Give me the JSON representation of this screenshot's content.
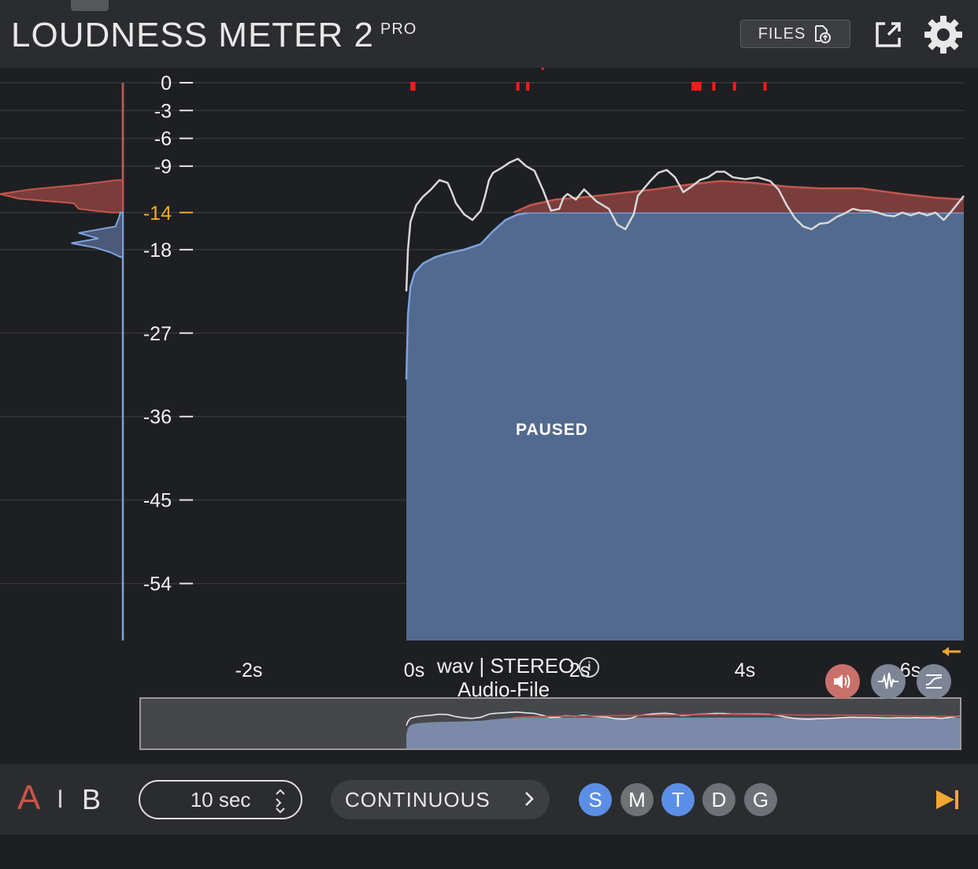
{
  "header": {
    "title": "LOUDNESS METER 2",
    "badge": "PRO",
    "files_label": "FILES",
    "icons": [
      "upload-file-icon",
      "external-window-icon",
      "gear-icon"
    ]
  },
  "status": {
    "paused": "PAUSED",
    "file_line1": "wav | STEREO",
    "file_line2": "Audio-File",
    "info_icon_glyph": "i"
  },
  "colors": {
    "momentary_line": "#d8d8d8",
    "short_term_fill": "#c1574e",
    "integrated_fill": "#526a8f",
    "integrated_line": "#7ea2df",
    "target": "#f0a830",
    "true_peak": "#ff1a1a",
    "accent_blue": "#5b8fe6"
  },
  "chart_data": {
    "type": "area",
    "y_ticks": [
      "0",
      "-3",
      "-6",
      "-9",
      "-14",
      "-18",
      "-27",
      "-36",
      "-45",
      "-54"
    ],
    "target_tick": "-14",
    "x_ticks": [
      "-2s",
      "0s",
      "2s",
      "4s",
      "6s"
    ],
    "xlim": [
      -3.9,
      6.6
    ],
    "ylim": [
      -60,
      0
    ],
    "target_lufs": -14,
    "grid": true,
    "series": [
      {
        "key": "integrated",
        "x": [
          0,
          0.02,
          0.05,
          0.1,
          0.2,
          0.35,
          0.5,
          0.7,
          0.9,
          1.05,
          1.2,
          1.35,
          1.5,
          7
        ],
        "y": [
          -32,
          -25,
          -22,
          -20.5,
          -19.5,
          -18.8,
          -18.4,
          -18,
          -17.4,
          -16,
          -14.8,
          -14.2,
          -14,
          -14
        ]
      },
      {
        "key": "short_term",
        "x": [
          1.3,
          1.5,
          1.8,
          2.2,
          2.6,
          3.0,
          3.4,
          3.8,
          4.2,
          4.6,
          5.0,
          5.5,
          6.0,
          6.4,
          6.75
        ],
        "y": [
          -14,
          -13.2,
          -12.6,
          -12.3,
          -11.9,
          -11.5,
          -11.0,
          -10.6,
          -10.8,
          -11.2,
          -11.4,
          -11.4,
          -12.0,
          -12.4,
          -12.6
        ]
      },
      {
        "key": "momentary",
        "x": [
          0,
          0.02,
          0.05,
          0.12,
          0.2,
          0.3,
          0.4,
          0.5,
          0.55,
          0.6,
          0.7,
          0.8,
          0.9,
          0.95,
          1.0,
          1.05,
          1.15,
          1.25,
          1.35,
          1.45,
          1.55,
          1.65,
          1.75,
          1.85,
          1.9,
          1.95,
          2.05,
          2.15,
          2.3,
          2.45,
          2.55,
          2.65,
          2.75,
          2.8,
          2.95,
          3.05,
          3.15,
          3.25,
          3.35,
          3.45,
          3.55,
          3.65,
          3.75,
          3.85,
          3.95,
          4.1,
          4.25,
          4.4,
          4.5,
          4.6,
          4.7,
          4.8,
          4.9,
          5.0,
          5.1,
          5.2,
          5.3,
          5.4,
          5.5,
          5.6,
          5.7,
          5.8,
          5.9,
          6.0,
          6.1,
          6.2,
          6.3,
          6.4,
          6.5,
          6.6,
          6.75
        ],
        "y": [
          -22.5,
          -18,
          -15,
          -13.2,
          -12.3,
          -11.5,
          -10.5,
          -10.8,
          -11.8,
          -13.0,
          -14.2,
          -14.8,
          -13.8,
          -12.3,
          -10.5,
          -9.7,
          -9.2,
          -8.6,
          -8.2,
          -9.0,
          -9.5,
          -11.5,
          -13.8,
          -13.6,
          -12.4,
          -12.0,
          -12.6,
          -11.5,
          -12.8,
          -13.6,
          -15.3,
          -15.8,
          -14.2,
          -12.2,
          -10.6,
          -9.7,
          -9.4,
          -10.2,
          -11.8,
          -11.2,
          -10.5,
          -10.2,
          -9.6,
          -9.6,
          -10.2,
          -10.4,
          -10.2,
          -10.6,
          -11.5,
          -13.2,
          -14.6,
          -15.5,
          -15.8,
          -15.2,
          -15.1,
          -14.5,
          -14.1,
          -13.6,
          -13.8,
          -13.8,
          -14.0,
          -14.3,
          -14.4,
          -14.0,
          -14.3,
          -14.0,
          -14.3,
          -14.0,
          -14.8,
          -13.8,
          -12.2
        ]
      }
    ],
    "true_peaks": [
      {
        "x": 0.05,
        "w": 0.06
      },
      {
        "x": 1.33,
        "w": 0.02
      },
      {
        "x": 1.45,
        "w": 0.02
      },
      {
        "x": 3.45,
        "w": 0.12
      },
      {
        "x": 3.7,
        "w": 0.03
      },
      {
        "x": 3.95,
        "w": 0.02
      },
      {
        "x": 4.32,
        "w": 0.02
      }
    ],
    "playhead_x": 1.65
  },
  "histogram": {
    "short_term": [
      {
        "lufs": -10.5,
        "v": 0.05
      },
      {
        "lufs": -11.0,
        "v": 0.35
      },
      {
        "lufs": -11.5,
        "v": 0.75
      },
      {
        "lufs": -12.0,
        "v": 1.0
      },
      {
        "lufs": -12.5,
        "v": 0.85
      },
      {
        "lufs": -13.0,
        "v": 0.4
      },
      {
        "lufs": -13.6,
        "v": 0.36
      },
      {
        "lufs": -14.0,
        "v": 0.1
      }
    ],
    "integrated": [
      {
        "lufs": -14.0,
        "v": 0.02
      },
      {
        "lufs": -14.5,
        "v": 0.03
      },
      {
        "lufs": -15.5,
        "v": 0.06
      },
      {
        "lufs": -16.2,
        "v": 0.36
      },
      {
        "lufs": -16.8,
        "v": 0.2
      },
      {
        "lufs": -17.3,
        "v": 0.42
      },
      {
        "lufs": -17.8,
        "v": 0.22
      },
      {
        "lufs": -18.3,
        "v": 0.1
      },
      {
        "lufs": -18.8,
        "v": 0.02
      }
    ]
  },
  "footer": {
    "ab_a": "A",
    "ab_sep": "I",
    "ab_b": "B",
    "time_range": "10 sec",
    "mode": "CONTINUOUS",
    "chips": [
      {
        "label": "S",
        "active": true
      },
      {
        "label": "M",
        "active": false
      },
      {
        "label": "T",
        "active": true
      },
      {
        "label": "D",
        "active": false
      },
      {
        "label": "G",
        "active": false
      }
    ]
  }
}
